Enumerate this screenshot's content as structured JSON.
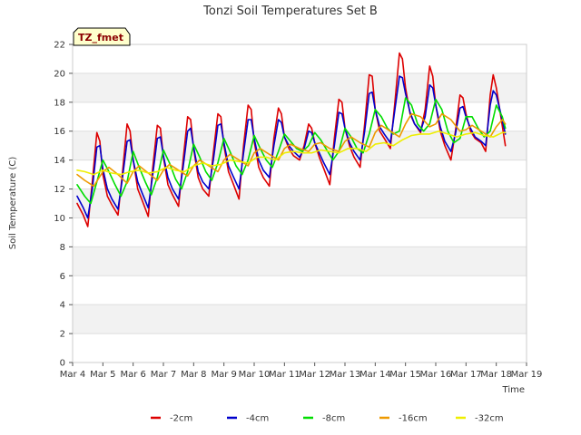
{
  "chart_data": {
    "type": "line",
    "title": "Tonzi Soil Temperatures Set B",
    "xlabel": "Time",
    "ylabel": "Soil Temperature (C)",
    "badge": "TZ_fmet",
    "xlim": [
      4,
      19
    ],
    "ylim": [
      0,
      22
    ],
    "x_ticks": [
      4,
      5,
      6,
      7,
      8,
      9,
      10,
      11,
      12,
      13,
      14,
      15,
      16,
      17,
      18,
      19
    ],
    "x_tick_labels": [
      "Mar 4",
      "Mar 5",
      "Mar 6",
      "Mar 7",
      "Mar 8",
      "Mar 9",
      "Mar 10",
      "Mar 11",
      "Mar 12",
      "Mar 13",
      "Mar 14",
      "Mar 15",
      "Mar 16",
      "Mar 17",
      "Mar 18",
      "Mar 19"
    ],
    "y_ticks": [
      0,
      2,
      4,
      6,
      8,
      10,
      12,
      14,
      16,
      18,
      20,
      22
    ],
    "grid": "horizontal bands",
    "legend_position": "bottom-center",
    "series": [
      {
        "name": "-2cm",
        "color": "#dd0000",
        "x": [
          4.15,
          4.35,
          4.5,
          4.65,
          4.8,
          4.9,
          5.0,
          5.15,
          5.3,
          5.5,
          5.65,
          5.8,
          5.9,
          6.0,
          6.15,
          6.3,
          6.5,
          6.65,
          6.8,
          6.9,
          7.0,
          7.15,
          7.3,
          7.5,
          7.65,
          7.8,
          7.9,
          8.0,
          8.15,
          8.3,
          8.5,
          8.65,
          8.8,
          8.9,
          9.0,
          9.15,
          9.3,
          9.5,
          9.65,
          9.8,
          9.9,
          10.0,
          10.15,
          10.3,
          10.5,
          10.65,
          10.8,
          10.9,
          11.0,
          11.15,
          11.3,
          11.5,
          11.65,
          11.8,
          11.9,
          12.0,
          12.15,
          12.3,
          12.5,
          12.65,
          12.8,
          12.9,
          13.0,
          13.15,
          13.3,
          13.5,
          13.65,
          13.8,
          13.9,
          14.0,
          14.15,
          14.3,
          14.5,
          14.65,
          14.8,
          14.9,
          15.0,
          15.15,
          15.3,
          15.5,
          15.65,
          15.8,
          15.9,
          16.0,
          16.15,
          16.3,
          16.5,
          16.65,
          16.8,
          16.9,
          17.0,
          17.15,
          17.3,
          17.5,
          17.65,
          17.8,
          17.9,
          18.0,
          18.15,
          18.3
        ],
        "y": [
          11.0,
          10.2,
          9.4,
          12.5,
          15.9,
          15.3,
          13.0,
          11.5,
          10.9,
          10.2,
          13.2,
          16.5,
          16.0,
          14.0,
          12.0,
          11.2,
          10.1,
          13.5,
          16.4,
          16.2,
          14.2,
          12.3,
          11.6,
          10.8,
          14.0,
          17.0,
          16.8,
          14.8,
          12.8,
          12.0,
          11.5,
          14.5,
          17.2,
          17.0,
          15.0,
          13.2,
          12.4,
          11.3,
          15.0,
          17.8,
          17.5,
          15.3,
          13.5,
          12.8,
          12.2,
          15.5,
          17.6,
          17.2,
          15.6,
          14.8,
          14.3,
          14.0,
          15.0,
          16.5,
          16.2,
          15.2,
          14.2,
          13.4,
          12.3,
          15.5,
          18.2,
          18.0,
          16.2,
          15.0,
          14.2,
          13.5,
          16.5,
          19.9,
          19.8,
          17.5,
          16.0,
          15.5,
          14.8,
          18.0,
          21.4,
          21.0,
          19.0,
          17.2,
          16.5,
          15.9,
          17.5,
          20.5,
          19.8,
          17.8,
          16.0,
          15.0,
          14.0,
          16.0,
          18.5,
          18.3,
          17.2,
          16.0,
          15.5,
          15.2,
          14.6,
          18.5,
          19.9,
          19.0,
          17.0,
          15.0
        ]
      },
      {
        "name": "-4cm",
        "color": "#0000cc",
        "x": [
          4.15,
          4.35,
          4.5,
          4.65,
          4.8,
          4.9,
          5.0,
          5.15,
          5.3,
          5.5,
          5.65,
          5.8,
          5.9,
          6.0,
          6.15,
          6.3,
          6.5,
          6.65,
          6.8,
          6.9,
          7.0,
          7.15,
          7.3,
          7.5,
          7.65,
          7.8,
          7.9,
          8.0,
          8.15,
          8.3,
          8.5,
          8.65,
          8.8,
          8.9,
          9.0,
          9.15,
          9.3,
          9.5,
          9.65,
          9.8,
          9.9,
          10.0,
          10.15,
          10.3,
          10.5,
          10.65,
          10.8,
          10.9,
          11.0,
          11.15,
          11.3,
          11.5,
          11.65,
          11.8,
          11.9,
          12.0,
          12.15,
          12.3,
          12.5,
          12.65,
          12.8,
          12.9,
          13.0,
          13.15,
          13.3,
          13.5,
          13.65,
          13.8,
          13.9,
          14.0,
          14.15,
          14.3,
          14.5,
          14.65,
          14.8,
          14.9,
          15.0,
          15.15,
          15.3,
          15.5,
          15.65,
          15.8,
          15.9,
          16.0,
          16.15,
          16.3,
          16.5,
          16.65,
          16.8,
          16.9,
          17.0,
          17.15,
          17.3,
          17.5,
          17.65,
          17.8,
          17.9,
          18.0,
          18.15,
          18.3
        ],
        "y": [
          11.5,
          10.7,
          10.0,
          12.0,
          14.9,
          15.0,
          13.4,
          12.0,
          11.3,
          10.6,
          12.8,
          15.3,
          15.4,
          14.0,
          12.5,
          11.7,
          10.7,
          13.0,
          15.5,
          15.6,
          14.3,
          12.8,
          12.0,
          11.3,
          13.5,
          16.0,
          16.2,
          14.9,
          13.2,
          12.5,
          12.0,
          14.0,
          16.4,
          16.5,
          15.2,
          13.6,
          12.9,
          12.0,
          14.5,
          16.8,
          16.8,
          15.5,
          14.0,
          13.3,
          12.8,
          15.0,
          16.8,
          16.6,
          15.6,
          15.0,
          14.6,
          14.2,
          14.8,
          16.0,
          15.9,
          15.2,
          14.5,
          13.8,
          13.0,
          15.0,
          17.3,
          17.2,
          16.2,
          15.2,
          14.6,
          14.0,
          16.0,
          18.6,
          18.7,
          17.5,
          16.3,
          15.8,
          15.2,
          17.5,
          19.8,
          19.7,
          18.6,
          17.3,
          16.5,
          16.0,
          17.0,
          19.2,
          19.0,
          17.8,
          16.3,
          15.3,
          14.6,
          15.8,
          17.6,
          17.7,
          17.0,
          16.2,
          15.6,
          15.3,
          15.0,
          17.8,
          18.8,
          18.5,
          17.2,
          15.8
        ]
      },
      {
        "name": "-8cm",
        "color": "#00dd00",
        "x": [
          4.15,
          4.4,
          4.6,
          4.8,
          5.0,
          5.2,
          5.4,
          5.6,
          5.8,
          6.0,
          6.2,
          6.4,
          6.6,
          6.8,
          7.0,
          7.2,
          7.4,
          7.6,
          7.8,
          8.0,
          8.2,
          8.4,
          8.6,
          8.8,
          9.0,
          9.2,
          9.4,
          9.6,
          9.8,
          10.0,
          10.2,
          10.4,
          10.6,
          10.8,
          11.0,
          11.2,
          11.4,
          11.6,
          11.8,
          12.0,
          12.2,
          12.4,
          12.6,
          12.8,
          13.0,
          13.2,
          13.4,
          13.6,
          13.8,
          14.0,
          14.2,
          14.4,
          14.6,
          14.8,
          15.0,
          15.2,
          15.4,
          15.6,
          15.8,
          16.0,
          16.2,
          16.4,
          16.6,
          16.8,
          17.0,
          17.2,
          17.4,
          17.6,
          17.8,
          18.0,
          18.2,
          18.3
        ],
        "y": [
          12.3,
          11.5,
          11.0,
          12.5,
          14.0,
          13.2,
          12.3,
          11.5,
          12.5,
          14.6,
          13.5,
          12.5,
          11.6,
          12.8,
          14.7,
          13.8,
          12.7,
          12.0,
          13.2,
          15.1,
          14.2,
          13.2,
          12.6,
          13.8,
          15.5,
          14.6,
          13.6,
          13.0,
          14.0,
          15.7,
          14.8,
          14.0,
          13.5,
          14.6,
          15.8,
          15.3,
          14.8,
          14.6,
          15.0,
          15.9,
          15.4,
          14.7,
          14.0,
          14.6,
          16.2,
          15.6,
          14.8,
          14.5,
          15.8,
          17.5,
          17.0,
          16.2,
          15.8,
          16.0,
          18.3,
          17.8,
          16.5,
          16.0,
          16.5,
          18.2,
          17.5,
          16.0,
          15.2,
          15.5,
          17.0,
          17.0,
          16.2,
          15.6,
          16.0,
          17.8,
          17.0,
          16.2
        ]
      },
      {
        "name": "-16cm",
        "color": "#ee9900",
        "x": [
          4.15,
          4.4,
          4.7,
          5.0,
          5.2,
          5.5,
          5.8,
          6.0,
          6.2,
          6.5,
          6.8,
          7.0,
          7.2,
          7.5,
          7.8,
          8.0,
          8.2,
          8.5,
          8.8,
          9.0,
          9.2,
          9.5,
          9.8,
          10.0,
          10.2,
          10.5,
          10.8,
          11.0,
          11.2,
          11.5,
          11.8,
          12.0,
          12.2,
          12.5,
          12.8,
          13.0,
          13.2,
          13.5,
          13.8,
          14.0,
          14.2,
          14.5,
          14.8,
          15.0,
          15.2,
          15.5,
          15.8,
          16.0,
          16.2,
          16.5,
          16.8,
          17.0,
          17.2,
          17.5,
          17.8,
          18.0,
          18.2,
          18.3
        ],
        "y": [
          13.0,
          12.6,
          12.2,
          13.2,
          13.5,
          13.0,
          12.4,
          13.2,
          13.6,
          13.1,
          12.6,
          13.3,
          13.7,
          13.3,
          12.9,
          13.6,
          14.0,
          13.6,
          13.2,
          14.0,
          14.4,
          14.0,
          13.6,
          14.5,
          14.8,
          14.4,
          14.0,
          14.8,
          15.1,
          14.8,
          14.6,
          15.1,
          15.2,
          14.8,
          14.6,
          15.3,
          15.6,
          15.2,
          14.9,
          15.9,
          16.4,
          16.0,
          15.6,
          16.5,
          17.2,
          17.0,
          16.3,
          16.5,
          17.2,
          16.8,
          16.0,
          16.1,
          16.4,
          16.0,
          15.6,
          16.3,
          16.8,
          16.5
        ]
      },
      {
        "name": "-32cm",
        "color": "#eeee00",
        "x": [
          4.15,
          4.4,
          4.7,
          5.0,
          5.3,
          5.6,
          5.9,
          6.2,
          6.5,
          6.8,
          7.1,
          7.4,
          7.7,
          8.0,
          8.3,
          8.6,
          8.9,
          9.2,
          9.5,
          9.8,
          10.1,
          10.4,
          10.7,
          11.0,
          11.3,
          11.6,
          11.9,
          12.2,
          12.5,
          12.8,
          13.1,
          13.4,
          13.7,
          14.0,
          14.3,
          14.6,
          14.9,
          15.2,
          15.5,
          15.8,
          16.1,
          16.4,
          16.7,
          17.0,
          17.3,
          17.6,
          17.9,
          18.2,
          18.3
        ],
        "y": [
          13.3,
          13.2,
          13.0,
          13.3,
          13.1,
          13.0,
          13.2,
          13.3,
          13.1,
          13.2,
          13.5,
          13.3,
          13.2,
          13.6,
          13.8,
          13.6,
          13.7,
          14.0,
          13.9,
          13.8,
          14.2,
          14.2,
          14.0,
          14.5,
          14.6,
          14.5,
          14.5,
          14.7,
          14.6,
          14.5,
          14.8,
          14.8,
          14.6,
          15.1,
          15.2,
          15.0,
          15.4,
          15.7,
          15.8,
          15.8,
          16.0,
          15.8,
          15.6,
          15.8,
          15.9,
          15.7,
          15.6,
          15.9,
          15.9
        ]
      }
    ]
  }
}
